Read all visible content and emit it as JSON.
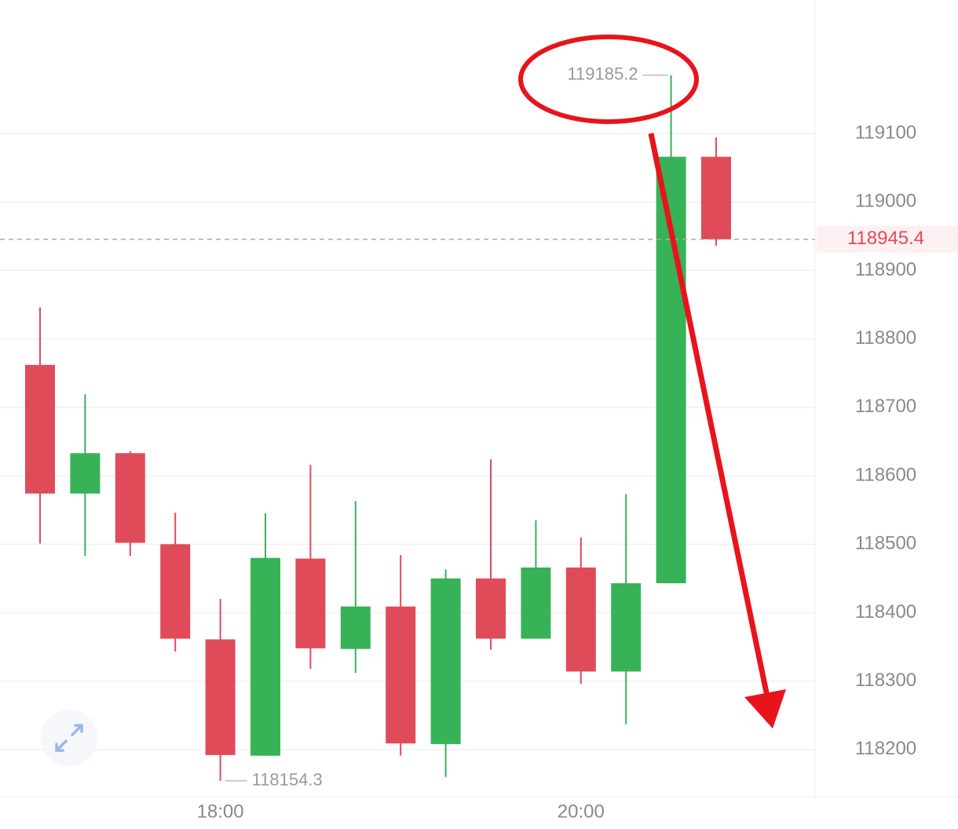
{
  "chart_data": {
    "type": "candlestick",
    "categories": [
      null,
      null,
      null,
      null,
      "18:00",
      null,
      null,
      null,
      null,
      null,
      null,
      null,
      "20:00",
      null,
      null,
      null
    ],
    "open": [
      118762,
      118574,
      118633,
      118500,
      118361,
      118191,
      118479,
      118347,
      118409,
      118208,
      118450,
      118362,
      118466,
      118314,
      118443,
      119066
    ],
    "high": [
      118846,
      118719,
      118636,
      118546,
      118420,
      118545,
      118616,
      118563,
      118484,
      118463,
      118624,
      118535,
      118510,
      118573,
      119185.2,
      119094
    ],
    "low": [
      118501,
      118483,
      118483,
      118343,
      118154.3,
      118191,
      118318,
      118312,
      118191,
      118160,
      118346,
      118362,
      118296,
      118237,
      118443,
      118936
    ],
    "close": [
      118574,
      118633,
      118502,
      118362,
      118192,
      118480,
      118348,
      118409,
      118209,
      118450,
      118362,
      118466,
      118314,
      118443,
      119066,
      118945.4
    ],
    "up_color": "#37b257",
    "down_color": "#e04b5a",
    "ylim": [
      118131,
      119295
    ],
    "yticks": [
      118200,
      118300,
      118400,
      118500,
      118600,
      118700,
      118800,
      118900,
      119000,
      119100
    ],
    "grid": true
  }
}
